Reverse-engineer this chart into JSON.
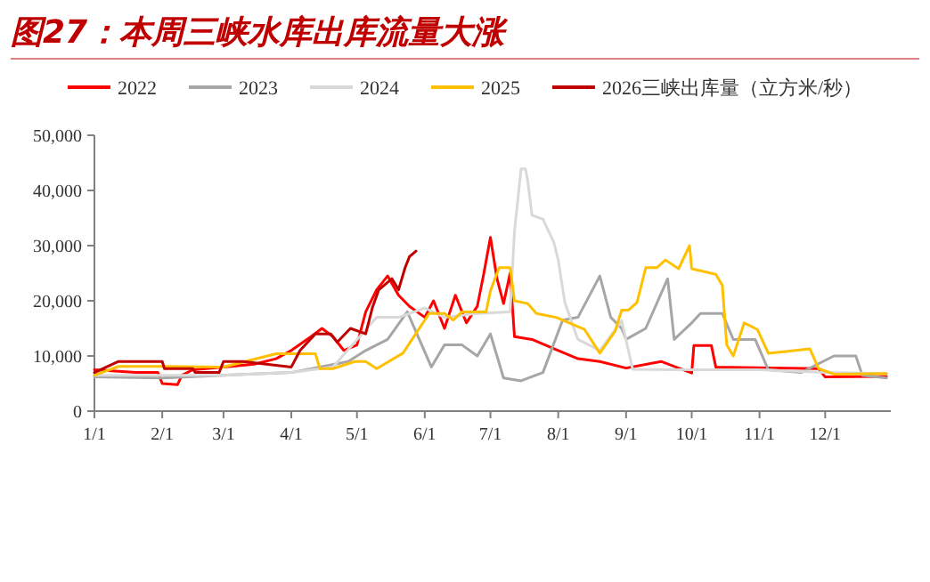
{
  "chart_data": {
    "type": "line",
    "title": "图27：本周三峡水库出库流量大涨",
    "legend": "top",
    "grid": false,
    "marker": "none",
    "line_style": "solid",
    "xlim": [
      "--01-01",
      "--12-31"
    ],
    "xticks": [
      {
        "value": "--01-01",
        "label": "1/1"
      },
      {
        "value": "--02-01",
        "label": "2/1"
      },
      {
        "value": "--03-01",
        "label": "3/1"
      },
      {
        "value": "--04-01",
        "label": "4/1"
      },
      {
        "value": "--05-01",
        "label": "5/1"
      },
      {
        "value": "--06-01",
        "label": "6/1"
      },
      {
        "value": "--07-01",
        "label": "7/1"
      },
      {
        "value": "--08-01",
        "label": "8/1"
      },
      {
        "value": "--09-01",
        "label": "9/1"
      },
      {
        "value": "--10-01",
        "label": "10/1"
      },
      {
        "value": "--11-01",
        "label": "11/1"
      },
      {
        "value": "--12-01",
        "label": "12/1"
      }
    ],
    "ylim": [
      0,
      50000
    ],
    "yticks": [
      0,
      {
        "value": 10000,
        "label": "10,000"
      },
      {
        "value": 20000,
        "label": "20,000"
      },
      {
        "value": 30000,
        "label": "30,000"
      },
      {
        "value": 40000,
        "label": "40,000"
      },
      {
        "value": 50000,
        "label": "50,000"
      }
    ],
    "series": [
      {
        "name": "2022",
        "color": "#ff0000",
        "x": [
          "--01-01",
          "--01-20",
          "--01-30",
          "--02-01",
          "--02-08",
          "--02-10",
          "--02-15",
          "--03-01",
          "--03-15",
          "--03-25",
          "--04-01",
          "--04-10",
          "--04-15",
          "--04-20",
          "--04-25",
          "--05-01",
          "--05-05",
          "--05-10",
          "--05-15",
          "--05-20",
          "--05-25",
          "--06-01",
          "--06-05",
          "--06-10",
          "--06-15",
          "--06-20",
          "--06-25",
          "--06-28",
          "--07-01",
          "--07-04",
          "--07-07",
          "--07-10",
          "--07-12",
          "--07-20",
          "--08-01",
          "--08-10",
          "--08-20",
          "--09-01",
          "--09-17",
          "--10-01",
          "--10-02",
          "--10-10",
          "--10-12",
          "--11-28",
          "--12-01",
          "--12-29"
        ],
        "values": [
          7500,
          7000,
          7000,
          5000,
          4800,
          6500,
          7500,
          8000,
          8500,
          9500,
          11000,
          13500,
          15000,
          13500,
          11000,
          12000,
          18000,
          22000,
          24500,
          21000,
          19000,
          17000,
          20000,
          15000,
          21000,
          16000,
          19000,
          25000,
          31500,
          24000,
          19500,
          25000,
          13500,
          13000,
          11000,
          9500,
          9000,
          7800,
          9000,
          6900,
          11900,
          11900,
          8000,
          7700,
          6200,
          6300
        ]
      },
      {
        "name": "2023",
        "color": "#a6a6a6",
        "x": [
          "--01-01",
          "--02-01",
          "--03-01",
          "--04-01",
          "--04-27",
          "--05-05",
          "--05-15",
          "--05-24",
          "--06-04",
          "--06-10",
          "--06-18",
          "--06-25",
          "--07-01",
          "--07-07",
          "--07-15",
          "--07-25",
          "--08-03",
          "--08-10",
          "--08-20",
          "--08-25",
          "--08-30",
          "--09-01",
          "--09-10",
          "--09-20",
          "--09-23",
          "--10-01",
          "--10-05",
          "--10-15",
          "--10-20",
          "--10-30",
          "--11-05",
          "--11-20",
          "--12-05",
          "--12-15",
          "--12-18",
          "--12-29"
        ],
        "values": [
          6200,
          6000,
          6500,
          7000,
          9000,
          11000,
          13000,
          18000,
          8000,
          12000,
          12000,
          10000,
          14000,
          6000,
          5500,
          7000,
          16500,
          17000,
          24500,
          17000,
          15000,
          13000,
          15000,
          24000,
          13000,
          16000,
          17700,
          17700,
          13000,
          13000,
          7500,
          7000,
          10000,
          10000,
          6500,
          6000
        ]
      },
      {
        "name": "2024",
        "color": "#d9d9d9",
        "x": [
          "--01-01",
          "--02-01",
          "--03-01",
          "--04-01",
          "--04-20",
          "--05-10",
          "--05-20",
          "--06-01",
          "--06-10",
          "--06-25",
          "--07-10",
          "--07-12",
          "--07-15",
          "--07-17",
          "--07-18",
          "--07-20",
          "--07-25",
          "--07-30",
          "--08-01",
          "--08-04",
          "--08-10",
          "--08-20",
          "--08-30",
          "--09-04",
          "--10-01",
          "--11-01",
          "--12-01",
          "--12-29"
        ],
        "values": [
          6500,
          6500,
          6500,
          7000,
          8000,
          17000,
          17000,
          18700,
          17000,
          17700,
          18000,
          32600,
          43900,
          43900,
          41900,
          35500,
          34800,
          30600,
          27400,
          19700,
          13000,
          11000,
          16400,
          7600,
          7500,
          7500,
          7000,
          6800
        ]
      },
      {
        "name": "2025",
        "color": "#ffc000",
        "x": [
          "--01-01",
          "--01-12",
          "--02-02",
          "--03-01",
          "--03-25",
          "--04-12",
          "--04-14",
          "--04-20",
          "--04-30",
          "--05-05",
          "--05-10",
          "--05-22",
          "--06-03",
          "--06-10",
          "--06-14",
          "--06-18",
          "--06-29",
          "--07-01",
          "--07-05",
          "--07-10",
          "--07-12",
          "--07-18",
          "--07-22",
          "--07-31",
          "--08-13",
          "--08-20",
          "--08-27",
          "--08-30",
          "--09-02",
          "--09-06",
          "--09-10",
          "--09-15",
          "--09-19",
          "--09-25",
          "--09-30",
          "--10-01",
          "--10-12",
          "--10-15",
          "--10-17",
          "--10-20",
          "--10-25",
          "--10-31",
          "--11-05",
          "--11-13",
          "--11-24",
          "--11-28",
          "--12-05",
          "--12-29"
        ],
        "values": [
          6500,
          8100,
          8100,
          8000,
          10400,
          10400,
          7700,
          7700,
          9000,
          9000,
          7700,
          10500,
          17700,
          17700,
          16500,
          18000,
          18000,
          21800,
          26000,
          26000,
          20000,
          19500,
          17700,
          17000,
          14800,
          10500,
          14500,
          18300,
          18300,
          19700,
          26000,
          26000,
          27400,
          25800,
          30000,
          25800,
          24800,
          22800,
          12000,
          10000,
          16000,
          14800,
          10500,
          10800,
          11300,
          7700,
          6700,
          6800
        ]
      },
      {
        "name": "2026三峡出库量（立方米/秒）",
        "color": "#c00000",
        "x": [
          "--01-01",
          "--01-12",
          "--02-01",
          "--02-02",
          "--02-15",
          "--02-16",
          "--02-27",
          "--03-01",
          "--03-10",
          "--04-01",
          "--04-05",
          "--04-12",
          "--04-19",
          "--04-22",
          "--04-28",
          "--05-05",
          "--05-08",
          "--05-11",
          "--05-17",
          "--05-20",
          "--05-23",
          "--05-25",
          "--05-28"
        ],
        "values": [
          7000,
          9000,
          9000,
          7700,
          7700,
          7000,
          7000,
          9000,
          9000,
          8000,
          11000,
          14000,
          14000,
          12500,
          15000,
          14000,
          18700,
          22000,
          24000,
          22000,
          26000,
          28000,
          29000
        ]
      }
    ]
  }
}
